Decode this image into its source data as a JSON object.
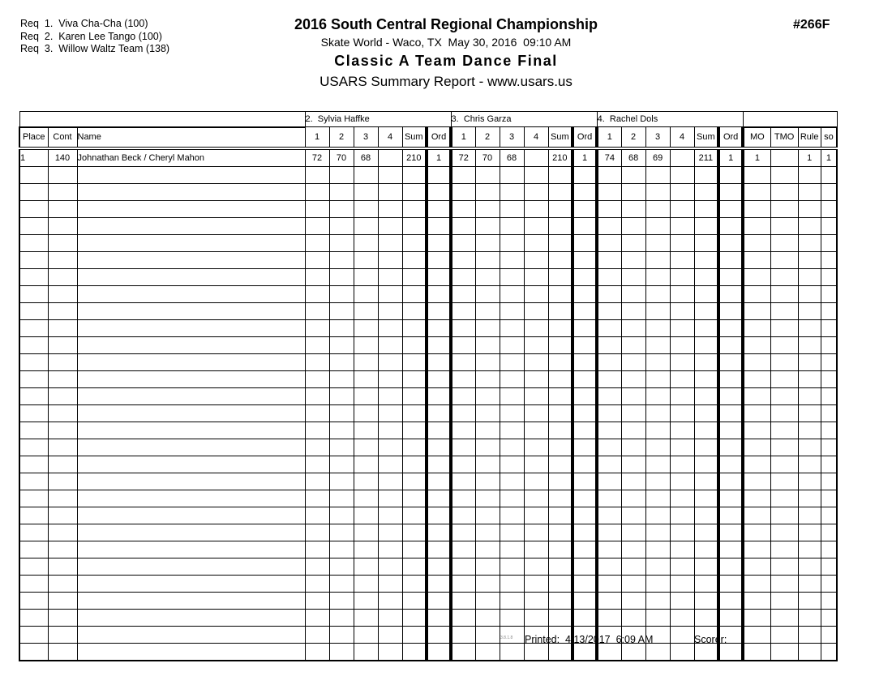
{
  "header": {
    "requirements": [
      "Req  1.  Viva Cha-Cha (100)",
      "Req  2.  Karen Lee Tango (100)",
      "Req  3.  Willow Waltz Team (138)"
    ],
    "title": "2016 South Central Regional Championship",
    "venue_line": "Skate World - Waco, TX  May 30, 2016  09:10 AM",
    "event_title": "Classic A Team Dance Final",
    "report_line": "USARS Summary Report - www.usars.us",
    "event_number": "#266F"
  },
  "table": {
    "judges": [
      "2.  Sylvia Haffke",
      "3.  Chris Garza",
      "4.  Rachel Dols"
    ],
    "left_headers": [
      "Place",
      "Cont",
      "Name"
    ],
    "judge_subheaders": [
      "1",
      "2",
      "3",
      "4",
      "Sum",
      "Ord"
    ],
    "right_headers": [
      "MO",
      "TMO",
      "Rule",
      "so"
    ],
    "rows": [
      {
        "place": "1",
        "cont": "140",
        "name": "Johnathan Beck / Cheryl Mahon",
        "judge_scores": [
          [
            "72",
            "70",
            "68",
            "",
            "210",
            "1"
          ],
          [
            "72",
            "70",
            "68",
            "",
            "210",
            "1"
          ],
          [
            "74",
            "68",
            "69",
            "",
            "211",
            "1"
          ]
        ],
        "mo": "1",
        "tmo": "",
        "rule": "1",
        "so": "1"
      }
    ],
    "empty_row_count": 29
  },
  "footer": {
    "version": "3.8.1.8",
    "printed_label": "Printed:  4/13/2017  6:09 AM",
    "scorer_label": "Scorer:"
  },
  "colors": {
    "text": "#000000",
    "background": "#ffffff",
    "version_gray": "#8a8a8a"
  }
}
